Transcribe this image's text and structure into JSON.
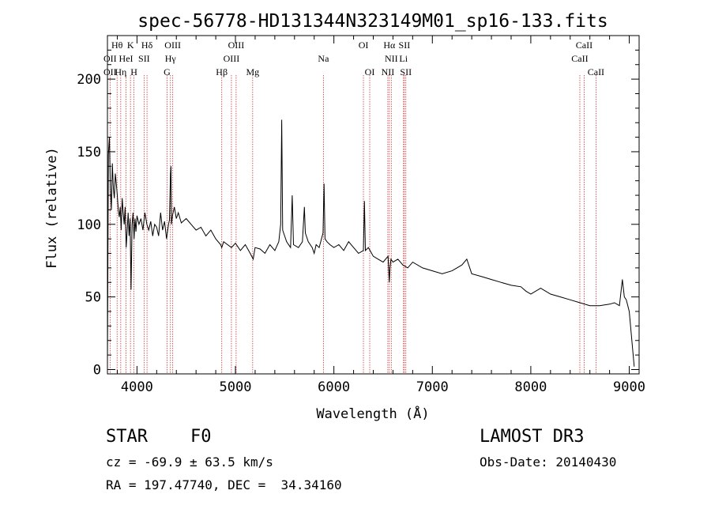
{
  "chart_data": {
    "type": "line",
    "title": "spec-56778-HD131344N323149M01_sp16-133.fits",
    "xlabel": "Wavelength (Å)",
    "ylabel": "Flux (relative)",
    "xlim": [
      3700,
      9100
    ],
    "ylim": [
      -3,
      230
    ],
    "xticks": [
      4000,
      5000,
      6000,
      7000,
      8000,
      9000
    ],
    "yticks": [
      0,
      50,
      100,
      150,
      200
    ],
    "grid": false,
    "series": [
      {
        "name": "flux",
        "x": [
          3700,
          3710,
          3720,
          3730,
          3740,
          3750,
          3760,
          3770,
          3780,
          3790,
          3800,
          3810,
          3820,
          3830,
          3840,
          3850,
          3860,
          3870,
          3880,
          3890,
          3900,
          3910,
          3920,
          3930,
          3940,
          3950,
          3960,
          3970,
          3980,
          3990,
          4000,
          4020,
          4040,
          4060,
          4080,
          4100,
          4120,
          4140,
          4160,
          4180,
          4200,
          4220,
          4240,
          4260,
          4280,
          4300,
          4320,
          4330,
          4340,
          4345,
          4350,
          4360,
          4380,
          4400,
          4420,
          4450,
          4500,
          4550,
          4600,
          4650,
          4700,
          4750,
          4800,
          4850,
          4861,
          4880,
          4920,
          4960,
          5000,
          5050,
          5100,
          5150,
          5180,
          5200,
          5250,
          5300,
          5350,
          5400,
          5440,
          5460,
          5470,
          5480,
          5520,
          5560,
          5577,
          5590,
          5640,
          5680,
          5700,
          5710,
          5740,
          5780,
          5800,
          5820,
          5850,
          5890,
          5900,
          5910,
          5930,
          5960,
          6000,
          6050,
          6100,
          6150,
          6200,
          6250,
          6300,
          6310,
          6320,
          6350,
          6400,
          6450,
          6500,
          6550,
          6563,
          6570,
          6580,
          6600,
          6650,
          6700,
          6750,
          6800,
          6900,
          7000,
          7100,
          7200,
          7250,
          7300,
          7350,
          7400,
          7500,
          7600,
          7700,
          7800,
          7900,
          7950,
          8000,
          8100,
          8200,
          8300,
          8400,
          8500,
          8600,
          8700,
          8800,
          8850,
          8900,
          8930,
          8950,
          8970,
          9000,
          9050
        ],
        "values": [
          5,
          148,
          160,
          125,
          110,
          142,
          125,
          118,
          135,
          128,
          120,
          110,
          105,
          112,
          96,
          118,
          108,
          100,
          112,
          84,
          95,
          108,
          92,
          104,
          55,
          100,
          108,
          90,
          104,
          95,
          106,
          100,
          104,
          96,
          108,
          100,
          96,
          102,
          92,
          100,
          98,
          92,
          108,
          96,
          102,
          90,
          100,
          103,
          135,
          140,
          100,
          106,
          112,
          104,
          108,
          101,
          104,
          100,
          96,
          98,
          92,
          96,
          90,
          86,
          84,
          88,
          86,
          84,
          87,
          82,
          86,
          80,
          76,
          84,
          83,
          80,
          86,
          82,
          88,
          100,
          172,
          96,
          88,
          84,
          120,
          86,
          84,
          88,
          112,
          94,
          88,
          84,
          80,
          86,
          84,
          94,
          128,
          90,
          88,
          86,
          84,
          86,
          82,
          88,
          84,
          80,
          82,
          116,
          82,
          84,
          78,
          76,
          74,
          78,
          60,
          70,
          76,
          74,
          76,
          72,
          70,
          74,
          70,
          68,
          66,
          68,
          70,
          72,
          76,
          66,
          64,
          62,
          60,
          58,
          57,
          54,
          52,
          56,
          52,
          50,
          48,
          46,
          44,
          44,
          45,
          46,
          44,
          62,
          50,
          48,
          40,
          2
        ]
      }
    ],
    "lines": [
      {
        "label": "Hθ",
        "x": 3798
      },
      {
        "label": "OII",
        "x": 3727
      },
      {
        "label": "Hη",
        "x": 3835
      },
      {
        "label": "HeI",
        "x": 3889
      },
      {
        "label": "K",
        "x": 3934
      },
      {
        "label": "H",
        "x": 3969
      },
      {
        "label": "SII",
        "x": 4072
      },
      {
        "label": "Hδ",
        "x": 4102
      },
      {
        "label": "Hγ",
        "x": 4340
      },
      {
        "label": "G",
        "x": 4305
      },
      {
        "label": "OIII",
        "x": 4363
      },
      {
        "label": "Hβ",
        "x": 4861
      },
      {
        "label": "OIII",
        "x": 4959
      },
      {
        "label": "OIII",
        "x": 5007
      },
      {
        "label": "Mg",
        "x": 5175
      },
      {
        "label": "Na",
        "x": 5894
      },
      {
        "label": "OI",
        "x": 6300
      },
      {
        "label": "OI",
        "x": 6364
      },
      {
        "label": "NII",
        "x": 6548
      },
      {
        "label": "Hα",
        "x": 6563
      },
      {
        "label": "NII",
        "x": 6583
      },
      {
        "label": "Li",
        "x": 6707
      },
      {
        "label": "SII",
        "x": 6716
      },
      {
        "label": "SII",
        "x": 6731
      },
      {
        "label": "CaII",
        "x": 8498
      },
      {
        "label": "CaII",
        "x": 8542
      },
      {
        "label": "CaII",
        "x": 8662
      }
    ],
    "line_label_rows": [
      [
        {
          "label": "Hθ",
          "x": 3798
        },
        {
          "label": "K",
          "x": 3934
        },
        {
          "label": "Hδ",
          "x": 4102
        },
        {
          "label": "OIII",
          "x": 4363
        },
        {
          "label": "OIII",
          "x": 5007
        },
        {
          "label": "OI",
          "x": 6300
        },
        {
          "label": "Hα",
          "x": 6563
        },
        {
          "label": "SII",
          "x": 6716
        },
        {
          "label": "CaII",
          "x": 8542
        }
      ],
      [
        {
          "label": "OII",
          "x": 3727
        },
        {
          "label": "HeI",
          "x": 3889
        },
        {
          "label": "SII",
          "x": 4072
        },
        {
          "label": "Hγ",
          "x": 4340
        },
        {
          "label": "OIII",
          "x": 4959
        },
        {
          "label": "Na",
          "x": 5894
        },
        {
          "label": "NII",
          "x": 6583
        },
        {
          "label": "Li",
          "x": 6707
        },
        {
          "label": "CaII",
          "x": 8498
        }
      ],
      [
        {
          "label": "OII",
          "x": 3727
        },
        {
          "label": "Hη",
          "x": 3835
        },
        {
          "label": "H",
          "x": 3969
        },
        {
          "label": "G",
          "x": 4305
        },
        {
          "label": "Hβ",
          "x": 4861
        },
        {
          "label": "Mg",
          "x": 5175
        },
        {
          "label": "OI",
          "x": 6364
        },
        {
          "label": "NII",
          "x": 6548
        },
        {
          "label": "SII",
          "x": 6731
        },
        {
          "label": "CaII",
          "x": 8662
        }
      ]
    ],
    "annotations": {
      "object_class": "STAR",
      "subclass": "F0",
      "survey": "LAMOST DR3",
      "cz": "cz = -69.9 ± 63.5 km/s",
      "obs_date": "Obs-Date: 20140430",
      "coords": "RA = 197.47740, DEC =  34.34160"
    },
    "colors": {
      "spectrum": "#000000",
      "lines": "#cc3333"
    }
  }
}
